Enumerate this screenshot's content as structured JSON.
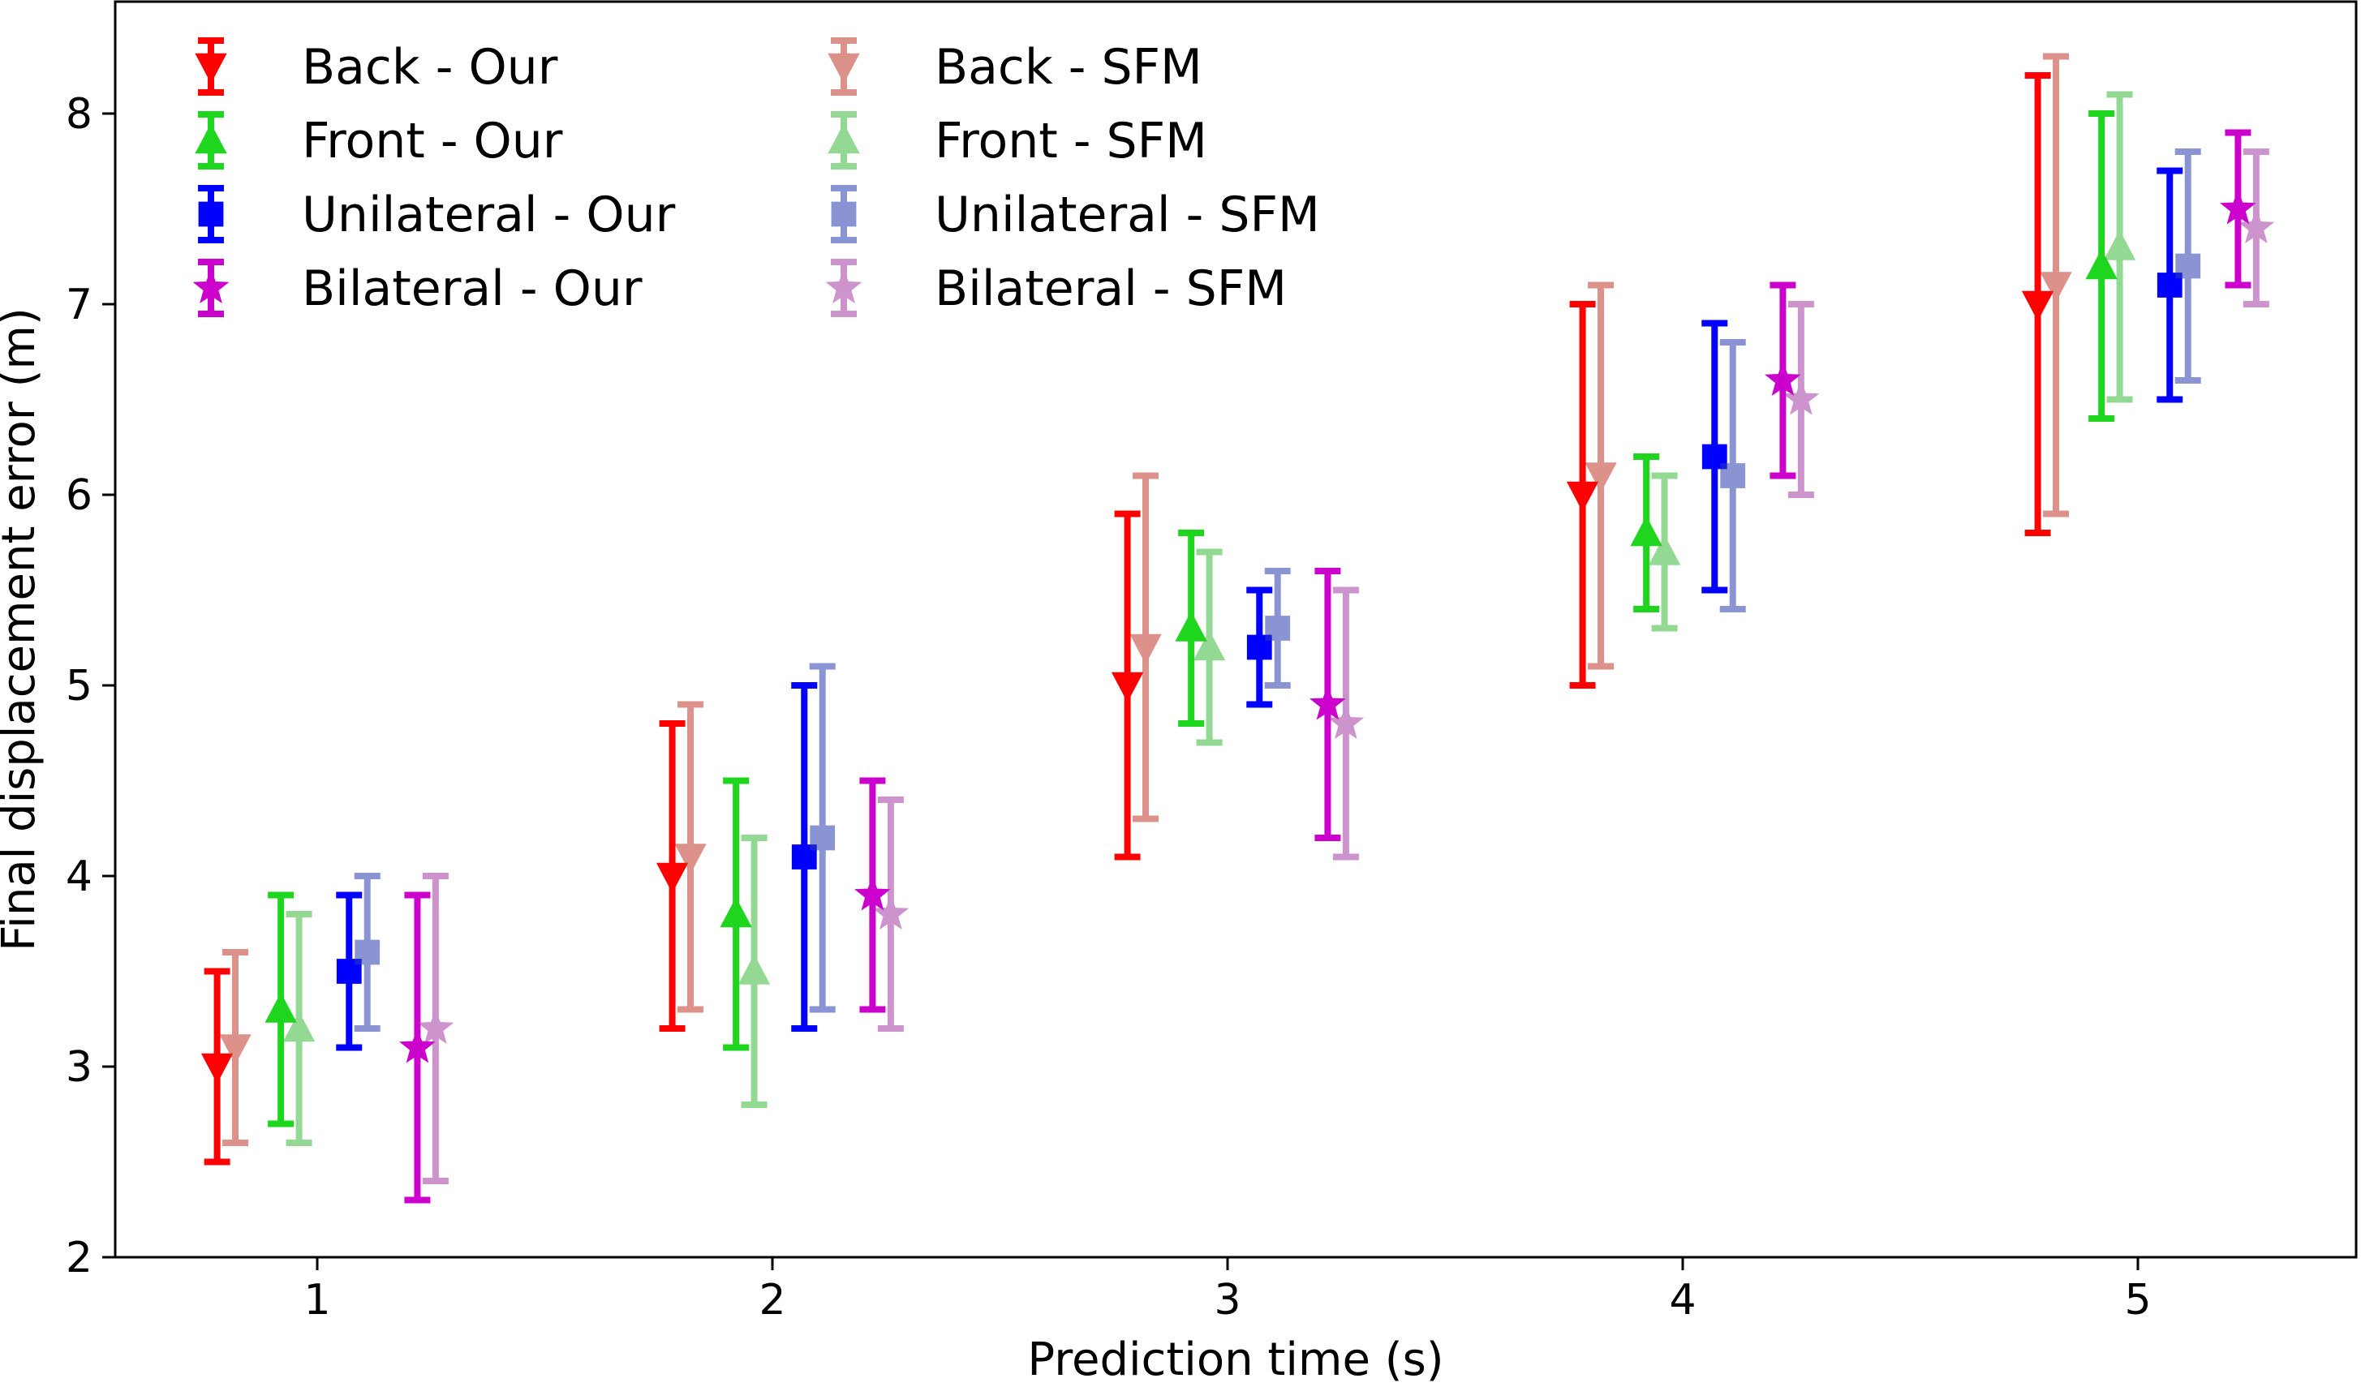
{
  "chart_data": {
    "type": "errorbar",
    "title": "",
    "xlabel": "Prediction time (s)",
    "ylabel": "Final displacement error (m)",
    "xlim": [
      0.55,
      5.5
    ],
    "ylim": [
      2,
      8.6
    ],
    "xticks": [
      "1",
      "2",
      "3",
      "4",
      "5"
    ],
    "yticks": [
      "2",
      "3",
      "4",
      "5",
      "6",
      "7",
      "8"
    ],
    "grid": false,
    "legend_position": "top-left",
    "x": [
      1,
      2,
      3,
      4,
      5
    ],
    "series": [
      {
        "name": "Back - Our",
        "marker": "triangle-down",
        "color": "#ff0000",
        "alpha": 1.0,
        "offset": -0.22,
        "values": [
          3.0,
          4.0,
          5.0,
          6.0,
          7.0
        ],
        "lower": [
          2.5,
          3.2,
          4.1,
          5.0,
          5.8
        ],
        "upper": [
          3.5,
          4.8,
          5.9,
          7.0,
          8.2
        ]
      },
      {
        "name": "Back - SFM",
        "marker": "triangle-down",
        "color": "#c0392b",
        "alpha": 0.55,
        "offset": -0.18,
        "values": [
          3.1,
          4.1,
          5.2,
          6.1,
          7.1
        ],
        "lower": [
          2.6,
          3.3,
          4.3,
          5.1,
          5.9
        ],
        "upper": [
          3.6,
          4.9,
          6.1,
          7.1,
          8.3
        ]
      },
      {
        "name": "Front - Our",
        "marker": "triangle-up",
        "color": "#1ed61e",
        "alpha": 1.0,
        "offset": -0.08,
        "values": [
          3.3,
          3.8,
          5.3,
          5.8,
          7.2
        ],
        "lower": [
          2.7,
          3.1,
          4.8,
          5.4,
          6.4
        ],
        "upper": [
          3.9,
          4.5,
          5.8,
          6.2,
          8.0
        ]
      },
      {
        "name": "Front - SFM",
        "marker": "triangle-up",
        "color": "#3cb93c",
        "alpha": 0.55,
        "offset": -0.04,
        "values": [
          3.2,
          3.5,
          5.2,
          5.7,
          7.3
        ],
        "lower": [
          2.6,
          2.8,
          4.7,
          5.3,
          6.5
        ],
        "upper": [
          3.8,
          4.2,
          5.7,
          6.1,
          8.1
        ]
      },
      {
        "name": "Unilateral - Our",
        "marker": "square",
        "color": "#0000ff",
        "alpha": 1.0,
        "offset": 0.07,
        "values": [
          3.5,
          4.1,
          5.2,
          6.2,
          7.1
        ],
        "lower": [
          3.1,
          3.2,
          4.9,
          5.5,
          6.5
        ],
        "upper": [
          3.9,
          5.0,
          5.5,
          6.9,
          7.7
        ]
      },
      {
        "name": "Unilateral - SFM",
        "marker": "square",
        "color": "#2c3db0",
        "alpha": 0.55,
        "offset": 0.11,
        "values": [
          3.6,
          4.2,
          5.3,
          6.1,
          7.2
        ],
        "lower": [
          3.2,
          3.3,
          5.0,
          5.4,
          6.6
        ],
        "upper": [
          4.0,
          5.1,
          5.6,
          6.8,
          7.8
        ]
      },
      {
        "name": "Bilateral - Our",
        "marker": "star",
        "color": "#cc00cc",
        "alpha": 1.0,
        "offset": 0.22,
        "values": [
          3.1,
          3.9,
          4.9,
          6.6,
          7.5
        ],
        "lower": [
          2.3,
          3.3,
          4.2,
          6.1,
          7.1
        ],
        "upper": [
          3.9,
          4.5,
          5.6,
          7.1,
          7.9
        ]
      },
      {
        "name": "Bilateral - SFM",
        "marker": "star",
        "color": "#a63ca6",
        "alpha": 0.55,
        "offset": 0.26,
        "values": [
          3.2,
          3.8,
          4.8,
          6.5,
          7.4
        ],
        "lower": [
          2.4,
          3.2,
          4.1,
          6.0,
          7.0
        ],
        "upper": [
          4.0,
          4.4,
          5.5,
          7.0,
          7.8
        ]
      }
    ],
    "legend": {
      "columns": [
        [
          "Back - Our",
          "Front - Our",
          "Unilateral - Our",
          "Bilateral - Our"
        ],
        [
          "Back - SFM",
          "Front - SFM",
          "Unilateral - SFM",
          "Bilateral - SFM"
        ]
      ]
    }
  }
}
